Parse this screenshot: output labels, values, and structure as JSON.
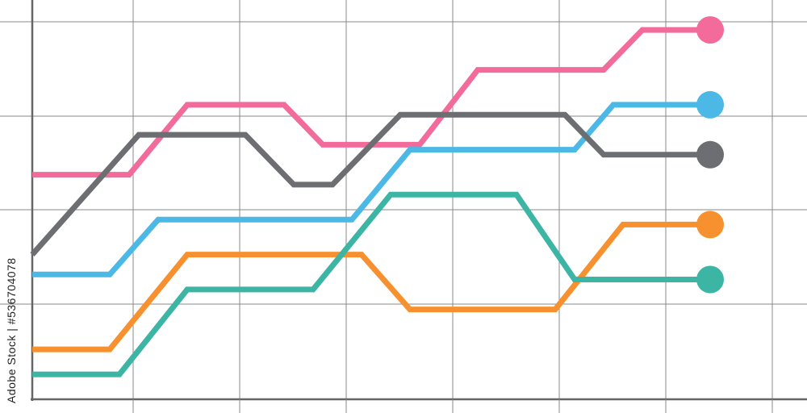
{
  "watermark": "Adobe Stock | #536704078",
  "chart_data": {
    "type": "line",
    "title": "",
    "xlabel": "",
    "ylabel": "",
    "grid": true,
    "legend": "none",
    "x": [
      0,
      1,
      2,
      3,
      4,
      5,
      6,
      7,
      8
    ],
    "xlim": [
      0,
      8
    ],
    "ylim": [
      0,
      8
    ],
    "series": [
      {
        "color": "#f26b9b",
        "points": [
          [
            0,
            4.5
          ],
          [
            1,
            4.5
          ],
          [
            1.6,
            5.9
          ],
          [
            2.6,
            5.9
          ],
          [
            3,
            5.1
          ],
          [
            4,
            5.1
          ],
          [
            4.6,
            6.6
          ],
          [
            5.9,
            6.6
          ],
          [
            6.3,
            7.4
          ],
          [
            7,
            7.4
          ]
        ]
      },
      {
        "color": "#4bb8e6",
        "points": [
          [
            0,
            2.5
          ],
          [
            0.8,
            2.5
          ],
          [
            1.3,
            3.6
          ],
          [
            3.3,
            3.6
          ],
          [
            3.9,
            5.0
          ],
          [
            5.6,
            5.0
          ],
          [
            6,
            5.9
          ],
          [
            7,
            5.9
          ]
        ]
      },
      {
        "color": "#6d6e71",
        "points": [
          [
            0,
            2.9
          ],
          [
            1.1,
            5.3
          ],
          [
            2.2,
            5.3
          ],
          [
            2.7,
            4.3
          ],
          [
            3.1,
            4.3
          ],
          [
            3.8,
            5.7
          ],
          [
            5.5,
            5.7
          ],
          [
            5.9,
            4.9
          ],
          [
            7,
            4.9
          ]
        ]
      },
      {
        "color": "#f7902e",
        "points": [
          [
            0,
            1.0
          ],
          [
            0.8,
            1.0
          ],
          [
            1.6,
            2.9
          ],
          [
            3.4,
            2.9
          ],
          [
            3.9,
            1.8
          ],
          [
            5.4,
            1.8
          ],
          [
            6.1,
            3.5
          ],
          [
            7,
            3.5
          ]
        ]
      },
      {
        "color": "#3db5a5",
        "points": [
          [
            0,
            0.5
          ],
          [
            0.9,
            0.5
          ],
          [
            1.6,
            2.2
          ],
          [
            2.9,
            2.2
          ],
          [
            3.7,
            4.1
          ],
          [
            5.0,
            4.1
          ],
          [
            5.6,
            2.4
          ],
          [
            7,
            2.4
          ]
        ]
      }
    ]
  }
}
